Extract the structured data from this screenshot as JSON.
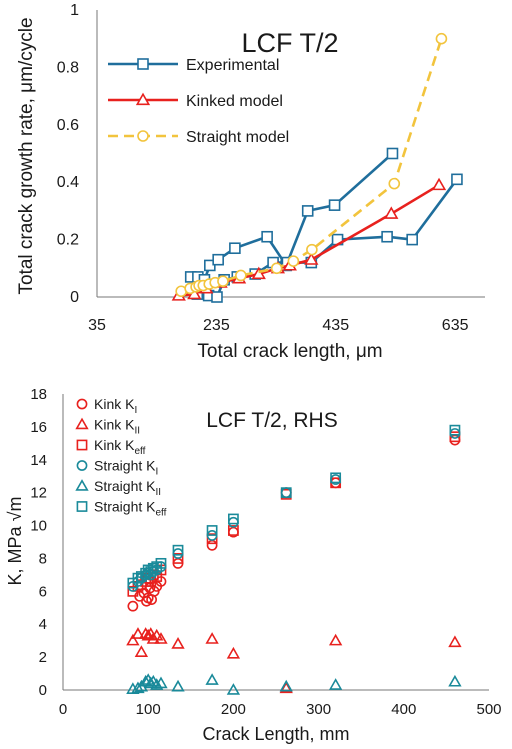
{
  "chart_data": [
    {
      "type": "line",
      "title": "LCF T/2",
      "xlabel": "Total crack length, μm",
      "ylabel": "Total crack growth rate, μm/cycle",
      "xlim": [
        35,
        685
      ],
      "ylim": [
        0,
        1
      ],
      "xticks": [
        "35",
        "235",
        "435",
        "635"
      ],
      "yticks": [
        "0",
        "0.2",
        "0.4",
        "0.6",
        "0.8",
        "1"
      ],
      "grid": false,
      "legend_position": "top-left",
      "colors": {
        "experimental": "#1f6e9c",
        "kinked": "#e8211e",
        "straight": "#f2c43d"
      },
      "series": [
        {
          "name": "Experimental",
          "marker": "square",
          "style": "solid",
          "segments": [
            {
              "x": [
                192,
                204,
                215,
                224,
                238,
                266,
                320,
                352,
                388,
                433,
                530
              ],
              "y": [
                0.07,
                0.07,
                0.06,
                0.11,
                0.13,
                0.17,
                0.21,
                0.11,
                0.3,
                0.32,
                0.5
              ]
            },
            {
              "x": [
                203,
                222,
                236,
                248,
                270,
                300,
                330,
                354,
                394,
                438,
                521,
                563,
                638
              ],
              "y": [
                0.01,
                0.005,
                0,
                0.06,
                0.07,
                0.08,
                0.12,
                0.12,
                0.12,
                0.2,
                0.21,
                0.2,
                0.41
              ]
            }
          ]
        },
        {
          "name": "Kinked model",
          "marker": "triangle",
          "style": "solid",
          "x": [
            172,
            198,
            218,
            242,
            273,
            306,
            338,
            358,
            394,
            528,
            608
          ],
          "y": [
            0.005,
            0.01,
            0.03,
            0.05,
            0.065,
            0.08,
            0.1,
            0.11,
            0.13,
            0.29,
            0.39
          ]
        },
        {
          "name": "Straight model",
          "marker": "circle",
          "style": "dashed",
          "x": [
            176,
            191,
            201,
            206,
            213,
            223,
            233,
            246,
            276,
            336,
            364,
            395,
            533,
            612
          ],
          "y": [
            0.02,
            0.03,
            0.035,
            0.04,
            0.04,
            0.045,
            0.05,
            0.055,
            0.075,
            0.1,
            0.125,
            0.165,
            0.395,
            0.9
          ]
        }
      ]
    },
    {
      "type": "scatter",
      "title": "LCF T/2, RHS",
      "xlabel": "Crack Length, mm",
      "ylabel": "K, MPa √m",
      "xlim": [
        0,
        500
      ],
      "ylim": [
        0,
        18
      ],
      "xticks": [
        "0",
        "100",
        "200",
        "300",
        "400",
        "500"
      ],
      "yticks": [
        "0",
        "2",
        "4",
        "6",
        "8",
        "10",
        "12",
        "14",
        "16",
        "18"
      ],
      "grid": false,
      "legend_position": "top-left",
      "series": [
        {
          "name": "Kink K",
          "sub": "I",
          "marker": "circle",
          "color": "#e8211e",
          "x": [
            82,
            90,
            95,
            98,
            100,
            102,
            104,
            107,
            110,
            115,
            135,
            175,
            200,
            262,
            320,
            460
          ],
          "y": [
            5.1,
            5.7,
            5.9,
            5.4,
            5.6,
            6.2,
            5.5,
            6.0,
            6.3,
            6.6,
            7.7,
            8.8,
            9.6,
            12.0,
            12.6,
            15.2
          ]
        },
        {
          "name": "Kink K",
          "sub": "II",
          "marker": "triangle",
          "color": "#e8211e",
          "x": [
            82,
            88,
            92,
            97,
            100,
            103,
            106,
            110,
            115,
            135,
            175,
            200,
            262,
            320,
            460
          ],
          "y": [
            3.0,
            3.4,
            2.3,
            3.4,
            3.3,
            3.4,
            3.1,
            3.3,
            3.1,
            2.8,
            3.1,
            2.2,
            0.1,
            3.0,
            2.9
          ]
        },
        {
          "name": "Kink K",
          "sub": "eff",
          "marker": "square",
          "color": "#e8211e",
          "x": [
            82,
            88,
            92,
            97,
            100,
            103,
            106,
            110,
            115,
            135,
            175,
            200,
            262,
            320,
            460
          ],
          "y": [
            6.0,
            6.3,
            6.4,
            6.6,
            6.8,
            6.6,
            7.0,
            6.9,
            7.3,
            8.0,
            9.2,
            9.7,
            11.9,
            12.6,
            15.4
          ]
        },
        {
          "name": "Straight K",
          "sub": "I",
          "marker": "circle",
          "color": "#1a8a9a",
          "x": [
            82,
            88,
            92,
            97,
            100,
            103,
            106,
            110,
            115,
            135,
            175,
            200,
            262,
            320,
            460
          ],
          "y": [
            6.3,
            6.6,
            6.8,
            7.0,
            7.1,
            7.0,
            7.2,
            7.3,
            7.5,
            8.3,
            9.4,
            10.2,
            12.0,
            12.8,
            15.6
          ]
        },
        {
          "name": "Straight K",
          "sub": "II",
          "marker": "triangle",
          "color": "#1a8a9a",
          "x": [
            82,
            88,
            92,
            97,
            100,
            103,
            106,
            110,
            115,
            135,
            175,
            200,
            262,
            320,
            460
          ],
          "y": [
            0.05,
            0.1,
            0.2,
            0.5,
            0.6,
            0.4,
            0.5,
            0.3,
            0.4,
            0.2,
            0.6,
            0.0,
            0.2,
            0.3,
            0.5
          ]
        },
        {
          "name": "Straight K",
          "sub": "eff",
          "marker": "square",
          "color": "#1a8a9a",
          "x": [
            82,
            88,
            92,
            97,
            100,
            103,
            106,
            110,
            115,
            135,
            175,
            200,
            262,
            320,
            460
          ],
          "y": [
            6.5,
            6.8,
            6.9,
            7.1,
            7.3,
            7.2,
            7.4,
            7.5,
            7.7,
            8.5,
            9.7,
            10.4,
            12.0,
            12.9,
            15.8
          ]
        }
      ]
    }
  ]
}
